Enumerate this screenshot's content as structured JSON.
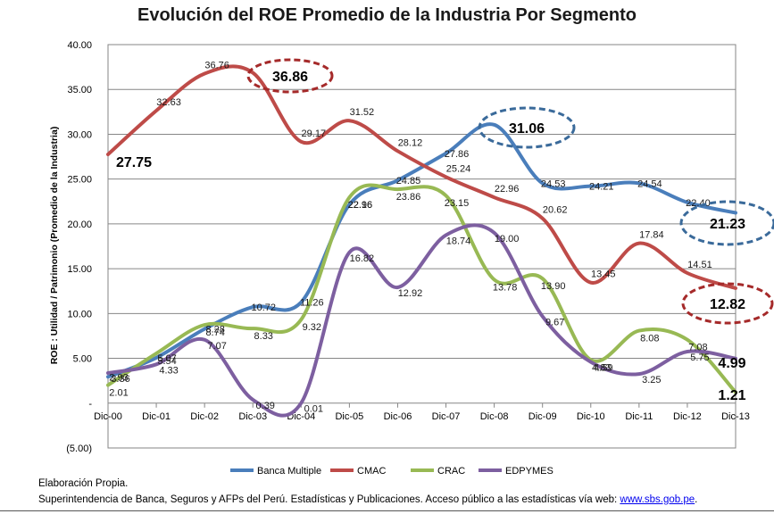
{
  "chart_data": {
    "type": "line",
    "title": "Evolución del ROE Promedio de la Industria Por Segmento",
    "ylabel": "ROE : Utilidad  /  Patrimonio (Promedio de la Industria)",
    "xlabel": "",
    "ylim": [
      -5,
      40
    ],
    "yticks": [
      -5,
      0,
      5,
      10,
      15,
      20,
      25,
      30,
      35,
      40
    ],
    "ytick_labels": [
      "(5.00)",
      "-",
      "5.00",
      "10.00",
      "15.00",
      "20.00",
      "25.00",
      "30.00",
      "35.00",
      "40.00"
    ],
    "categories": [
      "Dic-00",
      "Dic-01",
      "Dic-02",
      "Dic-03",
      "Dic-04",
      "Dic-05",
      "Dic-06",
      "Dic-07",
      "Dic-08",
      "Dic-09",
      "Dic-10",
      "Dic-11",
      "Dic-12",
      "Dic-13"
    ],
    "grid": true,
    "legend_position": "bottom",
    "series": [
      {
        "name": "Banca Multiple",
        "color": "#4a7ebb",
        "values": [
          2.93,
          5.07,
          8.28,
          10.72,
          11.26,
          22.16,
          24.85,
          27.86,
          31.06,
          24.53,
          24.21,
          24.54,
          22.4,
          21.23
        ],
        "labels": [
          "2.93",
          "5.07",
          "8.28",
          "10.72",
          "11.26",
          "22.16",
          "24.85",
          "27.86",
          "31.06",
          "24.53",
          "24.21",
          "24.54",
          "22.40",
          "21.23"
        ]
      },
      {
        "name": "CMAC",
        "color": "#be4b48",
        "values": [
          27.75,
          32.63,
          36.76,
          36.86,
          29.17,
          31.52,
          28.12,
          25.24,
          22.96,
          20.62,
          13.45,
          17.84,
          14.51,
          12.82
        ],
        "labels": [
          "27.75",
          "32.63",
          "36.76",
          "36.86",
          "29.17",
          "31.52",
          "28.12",
          "25.24",
          "22.96",
          "20.62",
          "13.45",
          "17.84",
          "14.51",
          "12.82"
        ]
      },
      {
        "name": "CRAC",
        "color": "#98b954",
        "values": [
          2.01,
          5.54,
          8.74,
          8.33,
          9.32,
          22.96,
          23.86,
          23.15,
          13.78,
          13.9,
          4.83,
          8.08,
          7.08,
          1.21
        ],
        "labels": [
          "2.01",
          "5.54",
          "8.74",
          "8.33",
          "9.32",
          "22.96",
          "23.86",
          "23.15",
          "13.78",
          "13.90",
          "4.83",
          "8.08",
          "7.08",
          "1.21"
        ]
      },
      {
        "name": "EDPYMES",
        "color": "#7d5fa0",
        "values": [
          3.36,
          4.33,
          7.07,
          0.39,
          0.01,
          16.82,
          12.92,
          18.74,
          19.0,
          9.67,
          4.59,
          3.25,
          5.75,
          4.99
        ],
        "labels": [
          "3.36",
          "4.33",
          "7.07",
          "0.39",
          "0.01",
          "16.82",
          "12.92",
          "18.74",
          "19.00",
          "9.67",
          "4.59",
          "3.25",
          "5.75",
          "4.99"
        ]
      }
    ],
    "callouts": [
      {
        "text": "27.75",
        "series": "CMAC",
        "circled": false
      },
      {
        "text": "36.86",
        "series": "CMAC",
        "circled": true,
        "color": "#a52a2a"
      },
      {
        "text": "31.06",
        "series": "Banca Multiple",
        "circled": true,
        "color": "#3a6a9a"
      },
      {
        "text": "21.23",
        "series": "Banca Multiple",
        "circled": true,
        "color": "#3a6a9a"
      },
      {
        "text": "12.82",
        "series": "CMAC",
        "circled": true,
        "color": "#a52a2a"
      },
      {
        "text": "4.99",
        "series": "EDPYMES",
        "circled": false
      },
      {
        "text": "1.21",
        "series": "CRAC",
        "circled": false
      }
    ]
  },
  "footer": {
    "line1": "Elaboración Propia.",
    "line2_prefix": "Superintendencia de Banca, Seguros y AFPs del Perú.  Estadísticas y Publicaciones. Acceso público a las estadísticas vía web: ",
    "link_text": "www.sbs.gob.pe",
    "line2_suffix": "."
  }
}
